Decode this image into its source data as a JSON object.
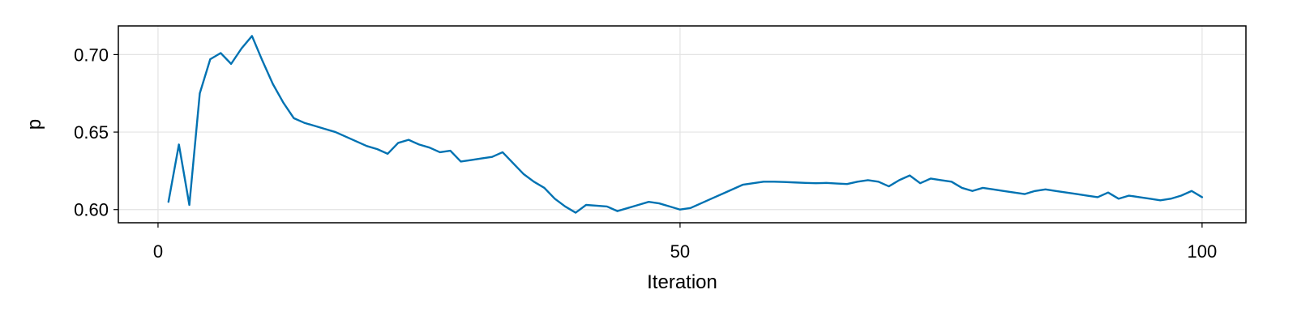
{
  "chart_data": {
    "type": "line",
    "title": "",
    "xlabel": "Iteration",
    "ylabel": "p",
    "xlim": [
      -3.8,
      104.2
    ],
    "ylim": [
      0.5915,
      0.7185
    ],
    "xticks": [
      0,
      50,
      100
    ],
    "xtick_labels": [
      "0",
      "50",
      "100"
    ],
    "yticks": [
      0.6,
      0.65,
      0.7
    ],
    "ytick_labels": [
      "0.60",
      "0.65",
      "0.70"
    ],
    "grid": true,
    "legend": "none",
    "series": [
      {
        "color": "#0072b2",
        "x": [
          1,
          2,
          3,
          4,
          5,
          6,
          7,
          8,
          9,
          10,
          11,
          12,
          13,
          14,
          15,
          16,
          17,
          18,
          19,
          20,
          21,
          22,
          23,
          24,
          25,
          26,
          27,
          28,
          29,
          30,
          31,
          32,
          33,
          34,
          35,
          36,
          37,
          38,
          39,
          40,
          41,
          42,
          43,
          44,
          45,
          46,
          47,
          48,
          49,
          50,
          51,
          52,
          53,
          54,
          55,
          56,
          57,
          58,
          59,
          60,
          61,
          62,
          63,
          64,
          65,
          66,
          67,
          68,
          69,
          70,
          71,
          72,
          73,
          74,
          75,
          76,
          77,
          78,
          79,
          80,
          81,
          82,
          83,
          84,
          85,
          86,
          87,
          88,
          89,
          90,
          91,
          92,
          93,
          94,
          95,
          96,
          97,
          98,
          99,
          100
        ],
        "y": [
          0.605,
          0.642,
          0.603,
          0.675,
          0.697,
          0.701,
          0.694,
          0.704,
          0.712,
          0.696,
          0.681,
          0.669,
          0.659,
          0.656,
          0.654,
          0.652,
          0.65,
          0.647,
          0.644,
          0.641,
          0.639,
          0.636,
          0.643,
          0.645,
          0.642,
          0.64,
          0.637,
          0.638,
          0.631,
          0.632,
          0.633,
          0.634,
          0.637,
          0.63,
          0.623,
          0.618,
          0.614,
          0.607,
          0.602,
          0.598,
          0.603,
          0.6025,
          0.602,
          0.599,
          0.601,
          0.603,
          0.605,
          0.604,
          0.602,
          0.6,
          0.601,
          0.604,
          0.607,
          0.61,
          0.613,
          0.616,
          0.617,
          0.618,
          0.618,
          0.6178,
          0.6175,
          0.6172,
          0.617,
          0.6172,
          0.6168,
          0.6165,
          0.618,
          0.619,
          0.618,
          0.615,
          0.619,
          0.622,
          0.617,
          0.62,
          0.619,
          0.618,
          0.614,
          0.612,
          0.614,
          0.613,
          0.612,
          0.611,
          0.61,
          0.612,
          0.613,
          0.612,
          0.611,
          0.61,
          0.609,
          0.608,
          0.611,
          0.607,
          0.609,
          0.608,
          0.607,
          0.606,
          0.607,
          0.609,
          0.612,
          0.608
        ]
      }
    ]
  }
}
